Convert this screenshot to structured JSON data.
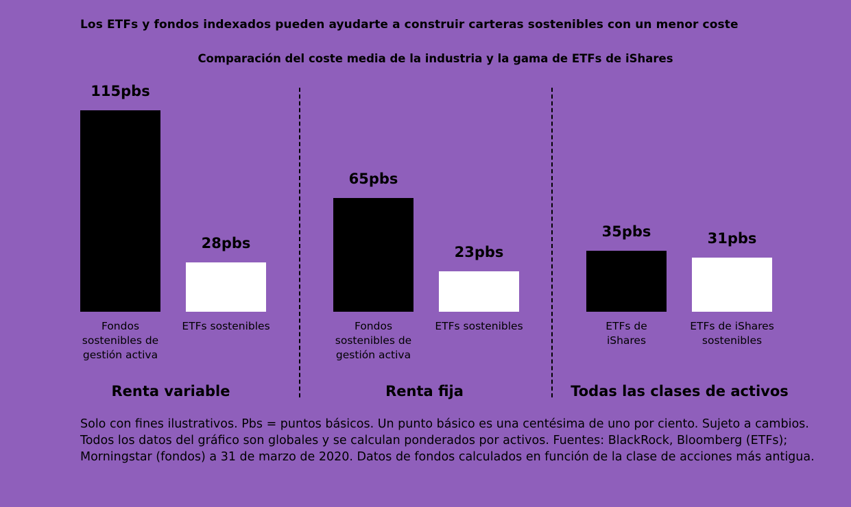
{
  "title": "Los ETFs y fondos indexados pueden ayudarte a construir carteras sostenibles con un menor coste",
  "subtitle": "Comparación del coste media de la industria y la gama de ETFs de iShares",
  "colors": {
    "background": "#8f5fbb",
    "industry_bar": "#000000",
    "ishares_bar": "#ffffff"
  },
  "chart_data": {
    "type": "bar",
    "unit": "pbs",
    "grid": false,
    "title": "Comparación del coste media de la industria y la gama de ETFs de iShares",
    "groups": [
      {
        "name": "Renta variable",
        "bars": [
          {
            "category": "Fondos\nsostenibles de\ngestión activa",
            "value": 115,
            "label": "115pbs",
            "color": "#000000"
          },
          {
            "category": "ETFs sostenibles",
            "value": 28,
            "label": "28pbs",
            "color": "#ffffff"
          }
        ]
      },
      {
        "name": "Renta fija",
        "bars": [
          {
            "category": "Fondos\nsostenibles de\ngestión activa",
            "value": 65,
            "label": "65pbs",
            "color": "#000000"
          },
          {
            "category": "ETFs sostenibles",
            "value": 23,
            "label": "23pbs",
            "color": "#ffffff"
          }
        ]
      },
      {
        "name": "Todas las clases de activos",
        "bars": [
          {
            "category": "ETFs de\niShares",
            "value": 35,
            "label": "35pbs",
            "color": "#000000"
          },
          {
            "category": "ETFs de iShares\nsostenibles",
            "value": 31,
            "label": "31pbs",
            "color": "#ffffff"
          }
        ]
      }
    ]
  },
  "footnote": "Solo con fines ilustrativos. Pbs = puntos básicos. Un punto básico es una centésima de uno por ciento. Sujeto a cambios. Todos los datos del gráfico son globales y se calculan ponderados por activos. Fuentes: BlackRock, Bloomberg (ETFs); Morningstar (fondos) a 31 de marzo de 2020. Datos de fondos calculados en función de la clase de acciones más antigua."
}
